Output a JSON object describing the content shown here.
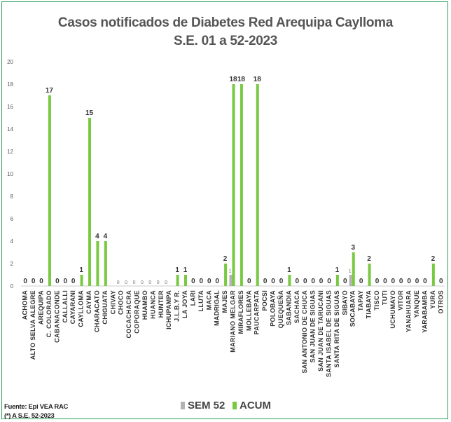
{
  "title_line1": "Casos notificados de Diabetes  Red Arequipa Caylloma",
  "title_line2": "S.E. 01 a 52-2023",
  "source_line1": "Fuente: Epi VEA RAC",
  "source_line2": "(*) A S.E. 52-2023",
  "colors": {
    "sem52": "#b3b3b3",
    "acum": "#7ac943",
    "axis": "#cccccc",
    "label": "#333333"
  },
  "chart_data": {
    "type": "bar",
    "title": "Casos notificados de Diabetes  Red Arequipa Caylloma S.E. 01 a 52-2023",
    "xlabel": "",
    "ylabel": "",
    "ylim": [
      0,
      20
    ],
    "yticks": [
      0,
      2,
      4,
      6,
      8,
      10,
      12,
      14,
      16,
      18,
      20
    ],
    "grid": false,
    "legend_position": "bottom",
    "categories": [
      "ACHOMA",
      "ALTO SELVA ALEGRE",
      "AREQUIPA",
      "C. COLORADO",
      "CABANACONDE",
      "CALLALLI",
      "CAYARANI",
      "CAYLLOMA",
      "CAYMA",
      "CHARACATO",
      "CHIGUATA",
      "CHIVAY",
      "CHOCO",
      "COCACHACRA",
      "COPORAQUE",
      "HUAMBO",
      "HUANCA",
      "HUNTER",
      "ICHUPAMPA",
      "J.L.B.Y R.",
      "LA JOYA",
      "LARI",
      "LLUTA",
      "MACA",
      "MADRIGAL",
      "MAJES",
      "MARIANO MELGAR",
      "MIRAFLORES",
      "MOLLEBAYA",
      "PAUCARPATA",
      "POCSI",
      "POLOBAYA",
      "QUEQUEÑA",
      "SABANDIA",
      "SACHACA",
      "SAN ANTONIO DE CHUCA",
      "SAN JUAN DE SIGUAS",
      "SAN JUAN DE TARUCANI",
      "SANTA ISABEL DE SIGUAS",
      "SANTA RITA DE SIGUAS",
      "SIBAYO",
      "SOCABAYA",
      "TAPAY",
      "TIABAYA",
      "TISCO",
      "TUTI",
      "UCHUMAYO",
      "VITOR",
      "YANAHUARA",
      "YANQUE",
      "YARABAMBA",
      "YURA",
      "OTROS"
    ],
    "series": [
      {
        "name": "SEM 52",
        "values": [
          0,
          0,
          0,
          0,
          0,
          0,
          0,
          0,
          0,
          0,
          0,
          0,
          0,
          0,
          0,
          0,
          0,
          0,
          0,
          0,
          0,
          0,
          0,
          0,
          0,
          0,
          1,
          0,
          0,
          0,
          0,
          0,
          0,
          0,
          0,
          0,
          0,
          0,
          0,
          0,
          0,
          1,
          0,
          0,
          0,
          0,
          0,
          0,
          0,
          0,
          0,
          0,
          0
        ]
      },
      {
        "name": "ACUM",
        "values": [
          0,
          0,
          0,
          17,
          0,
          0,
          0,
          1,
          15,
          4,
          4,
          0,
          0,
          0,
          0,
          0,
          0,
          0,
          0,
          1,
          1,
          0,
          0,
          0,
          0,
          2,
          18,
          18,
          0,
          18,
          0,
          0,
          0,
          1,
          0,
          0,
          0,
          0,
          0,
          1,
          0,
          3,
          0,
          2,
          0,
          0,
          0,
          0,
          0,
          0,
          0,
          2,
          0
        ]
      }
    ],
    "data_labels": {
      "ACUM": [
        "0",
        "0",
        "0",
        "17",
        "0",
        "0",
        "0",
        "1",
        "15",
        "4",
        "4",
        "",
        "",
        "",
        "",
        "",
        "",
        "",
        "",
        "1",
        "1",
        "0",
        "0",
        "0",
        "0",
        "2",
        "18",
        "18",
        "0",
        "18",
        "0",
        "0",
        "0",
        "1",
        "0",
        "0",
        "0",
        "0",
        "0",
        "1",
        "0",
        "3",
        "0",
        "2",
        "0",
        "0",
        "0",
        "0",
        "0",
        "0",
        "0",
        "2",
        "0"
      ],
      "SEM 52": [
        "",
        "",
        "",
        "",
        "",
        "",
        "",
        "",
        "",
        "",
        "",
        "",
        "0",
        "0",
        "0",
        "0",
        "0",
        "0",
        "0",
        "",
        "",
        "",
        "",
        "",
        "",
        "",
        "1",
        "",
        "",
        "",
        "",
        "",
        "",
        "",
        "",
        "",
        "",
        "",
        "",
        "",
        "",
        "1",
        "",
        "",
        "",
        "",
        "",
        "",
        "",
        "",
        "",
        "",
        ""
      ]
    }
  }
}
